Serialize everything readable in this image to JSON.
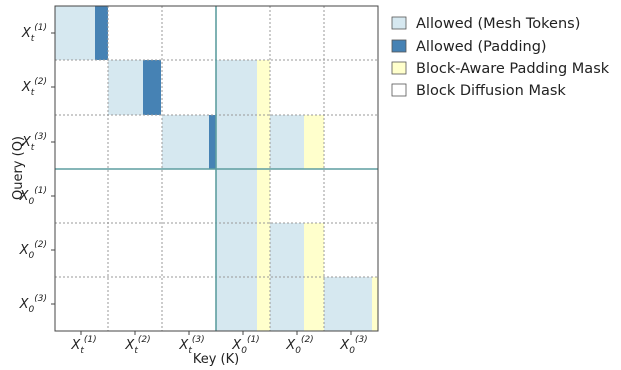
{
  "figure": {
    "xlabel": "Key (K)",
    "ylabel": "Query (Q)",
    "row_labels": [
      {
        "base": "X",
        "sub": "t",
        "sup": "(1)"
      },
      {
        "base": "X",
        "sub": "t",
        "sup": "(2)"
      },
      {
        "base": "X",
        "sub": "t",
        "sup": "(3)"
      },
      {
        "base": "X",
        "sub": "0",
        "sup": "(1)"
      },
      {
        "base": "X",
        "sub": "0",
        "sup": "(2)"
      },
      {
        "base": "X",
        "sub": "0",
        "sup": "(3)"
      }
    ],
    "col_labels": [
      {
        "base": "X",
        "sub": "t",
        "sup": "(1)"
      },
      {
        "base": "X",
        "sub": "t",
        "sup": "(2)"
      },
      {
        "base": "X",
        "sub": "t",
        "sup": "(3)"
      },
      {
        "base": "X",
        "sub": "0",
        "sup": "(1)"
      },
      {
        "base": "X",
        "sub": "0",
        "sup": "(2)"
      },
      {
        "base": "X",
        "sub": "0",
        "sup": "(3)"
      }
    ],
    "legend": [
      {
        "label": "Allowed (Mesh Tokens)",
        "color": "#d6e8f0"
      },
      {
        "label": "Allowed (Padding)",
        "color": "#4682b4"
      },
      {
        "label": "Block-Aware Padding Mask",
        "color": "#ffffcc"
      },
      {
        "label": "Block Diffusion Mask",
        "color": "#ffffff"
      }
    ],
    "colors": {
      "mesh": "#d6e8f0",
      "padding": "#4682b4",
      "block_aware": "#ffffcc",
      "block_diffusion": "#ffffff",
      "separator": "#5f9ea0",
      "grid": "#999999"
    }
  }
}
